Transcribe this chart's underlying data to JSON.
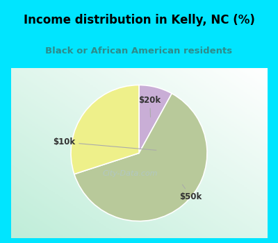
{
  "title": "Income distribution in Kelly, NC (%)",
  "subtitle": "Black or African American residents",
  "slices": [
    {
      "label": "$20k",
      "value": 8,
      "color": "#c9aed6"
    },
    {
      "label": "$50k",
      "value": 62,
      "color": "#b8c99a"
    },
    {
      "label": "$10k",
      "value": 30,
      "color": "#eef08a"
    }
  ],
  "start_angle": 90,
  "title_color": "#000000",
  "subtitle_color": "#2e8b8b",
  "border_color": "#00e5ff",
  "chart_bg_colors": [
    "#c2e8d8",
    "#dff2ea",
    "#f0faf5",
    "#e8f5ef"
  ],
  "label_color": "#333333",
  "watermark": "City-Data.com",
  "watermark_color": "#b0c8d0",
  "label_positions": {
    "$20k": [
      0.58,
      0.89
    ],
    "$50k": [
      0.88,
      0.18
    ],
    "$10k": [
      -0.05,
      0.58
    ]
  },
  "arrow_endpoints": {
    "$20k": [
      0.17,
      0.75
    ],
    "$50k": [
      0.62,
      0.28
    ],
    "$10k": [
      0.28,
      0.52
    ]
  }
}
